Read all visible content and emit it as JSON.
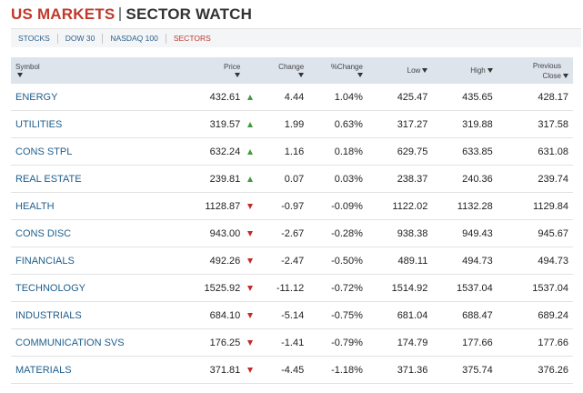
{
  "header": {
    "title_market": "US MARKETS",
    "title_section": "SECTOR WATCH"
  },
  "tabs": [
    "STOCKS",
    "DOW 30",
    "NASDAQ 100",
    "SECTORS"
  ],
  "active_tab": 3,
  "table": {
    "columns": [
      "Symbol",
      "Price",
      "Change",
      "%Change",
      "Low",
      "High",
      "Previous Close"
    ],
    "rows": [
      [
        "ENERGY",
        "432.61",
        "4.44",
        "1.04%",
        "425.47",
        "435.65",
        "428.17"
      ],
      [
        "UTILITIES",
        "319.57",
        "1.99",
        "0.63%",
        "317.27",
        "319.88",
        "317.58"
      ],
      [
        "CONS STPL",
        "632.24",
        "1.16",
        "0.18%",
        "629.75",
        "633.85",
        "631.08"
      ],
      [
        "REAL ESTATE",
        "239.81",
        "0.07",
        "0.03%",
        "238.37",
        "240.36",
        "239.74"
      ],
      [
        "HEALTH",
        "1128.87",
        "-0.97",
        "-0.09%",
        "1122.02",
        "1132.28",
        "1129.84"
      ],
      [
        "CONS DISC",
        "943.00",
        "-2.67",
        "-0.28%",
        "938.38",
        "949.43",
        "945.67"
      ],
      [
        "FINANCIALS",
        "492.26",
        "-2.47",
        "-0.50%",
        "489.11",
        "494.73",
        "494.73"
      ],
      [
        "TECHNOLOGY",
        "1525.92",
        "-11.12",
        "-0.72%",
        "1514.92",
        "1537.04",
        "1537.04"
      ],
      [
        "INDUSTRIALS",
        "684.10",
        "-5.14",
        "-0.75%",
        "681.04",
        "688.47",
        "689.24"
      ],
      [
        "COMMUNICATION SVS",
        "176.25",
        "-1.41",
        "-0.79%",
        "174.79",
        "177.66",
        "177.66"
      ],
      [
        "MATERIALS",
        "371.81",
        "-4.45",
        "-1.18%",
        "371.36",
        "375.74",
        "376.26"
      ]
    ]
  }
}
